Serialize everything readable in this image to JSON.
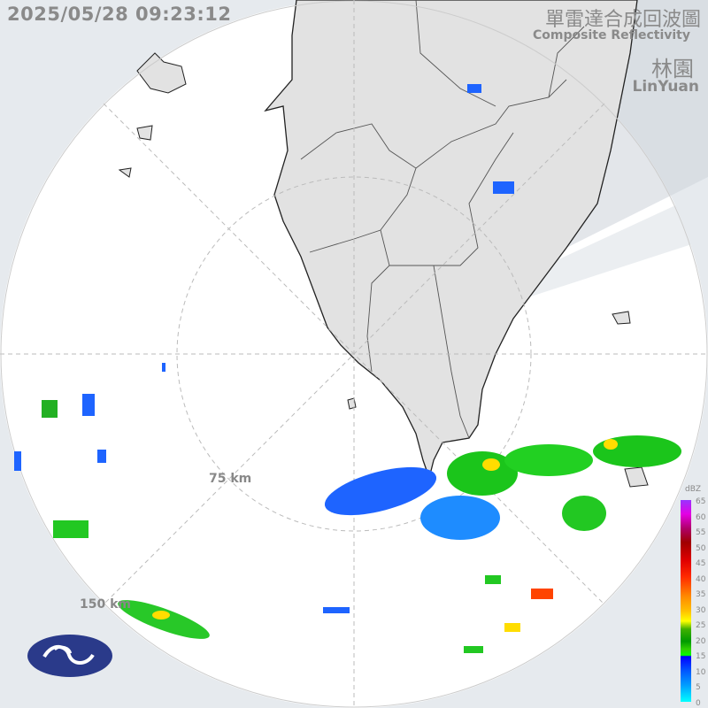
{
  "header": {
    "timestamp": "2025/05/28 09:23:12",
    "title_zh": "單雷達合成回波圖",
    "title_en": "Composite Reflectivity",
    "station_zh": "林園",
    "station_en": "LinYuan"
  },
  "range_rings": [
    "75 km",
    "150 km"
  ],
  "colorbar": {
    "unit": "dBZ",
    "ticks": [
      "65",
      "60",
      "55",
      "50",
      "45",
      "40",
      "35",
      "30",
      "25",
      "20",
      "15",
      "10",
      "5",
      "0"
    ]
  },
  "colors": {
    "background": "#e6eaee",
    "radar_coverage": "#ffffff",
    "land": "#e2e2e2",
    "logo": "#2a3a8a"
  }
}
